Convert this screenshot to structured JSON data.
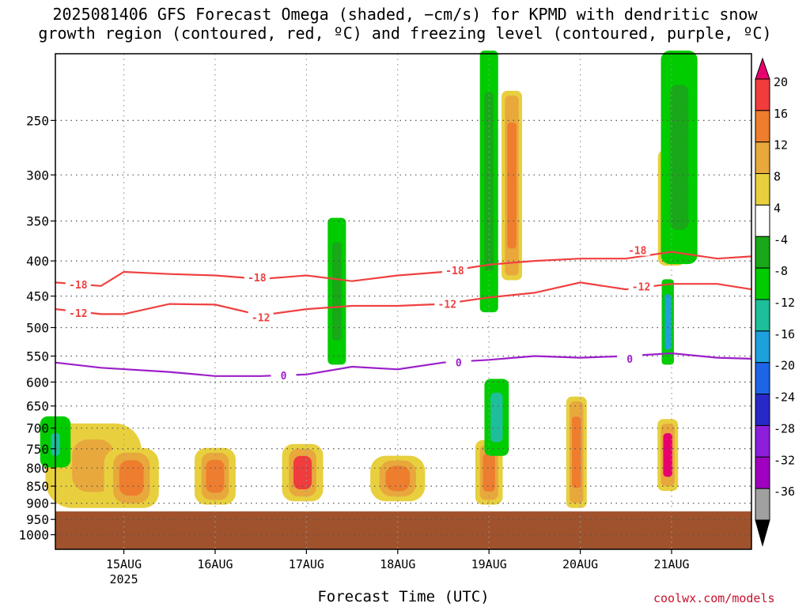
{
  "title_line1": "2025081406 GFS Forecast Omega (shaded, −cm/s) for KPMD with dendritic snow",
  "title_line2": "growth region (contoured, red, ºC) and freezing level (contoured, purple, ºC)",
  "xlabel": "Forecast Time (UTC)",
  "credit": "coolwx.com/models",
  "colors": {
    "background": "#ffffff",
    "ground": "#a0522d",
    "dgz_contour": "#f04040",
    "freezing_contour": "#9b1fc8",
    "grid": "#555555"
  },
  "chart_data": {
    "type": "heatmap",
    "title": "2025081406 GFS Forecast Omega (shaded, −cm/s) for KPMD with dendritic snow growth region (contoured, red, ºC) and freezing level (contoured, purple, ºC)",
    "xlabel": "Forecast Time (UTC)",
    "ylabel": "",
    "y_scale": "log-pressure (hPa), inverted",
    "x_range_hours_utc": [
      "2025-08-14 06",
      "2025-08-21 21"
    ],
    "x_ticks": [
      "15AUG",
      "16AUG",
      "17AUG",
      "18AUG",
      "19AUG",
      "20AUG",
      "21AUG"
    ],
    "x_tick_sublabel": "2025",
    "y_ticks": [
      250,
      300,
      350,
      400,
      450,
      500,
      550,
      600,
      650,
      700,
      750,
      800,
      850,
      900,
      950,
      1000
    ],
    "ylim": [
      1050,
      200
    ],
    "grid": true,
    "ground_below_hpa": 925,
    "colorbar": {
      "ticks": [
        20,
        16,
        12,
        8,
        4,
        -4,
        -8,
        -12,
        -16,
        -20,
        -24,
        -28,
        -32,
        -36
      ],
      "colors": [
        "#e8006e",
        "#f03c3c",
        "#ee7d2d",
        "#e8a83c",
        "#e8cf3e",
        "#ffffff",
        "#18a818",
        "#00cc00",
        "#1ebe9b",
        "#1ea0dc",
        "#1e64e6",
        "#2828c8",
        "#8c1edc",
        "#a000c0",
        "#a0a0a0",
        "#000000"
      ]
    },
    "contours": [
      {
        "name": "-18",
        "color": "#f04040",
        "points": [
          [
            "14AUG06",
            430
          ],
          [
            "14AUG18",
            435
          ],
          [
            "15AUG00",
            415
          ],
          [
            "15AUG12",
            418
          ],
          [
            "16AUG00",
            420
          ],
          [
            "16AUG12",
            425
          ],
          [
            "17AUG00",
            420
          ],
          [
            "17AUG12",
            428
          ],
          [
            "18AUG00",
            420
          ],
          [
            "18AUG12",
            415
          ],
          [
            "19AUG00",
            405
          ],
          [
            "19AUG12",
            400
          ],
          [
            "20AUG00",
            397
          ],
          [
            "20AUG12",
            397
          ],
          [
            "21AUG00",
            388
          ],
          [
            "21AUG12",
            397
          ],
          [
            "21AUG21",
            394
          ]
        ]
      },
      {
        "name": "-12",
        "color": "#f04040",
        "points": [
          [
            "14AUG06",
            470
          ],
          [
            "14AUG18",
            478
          ],
          [
            "15AUG00",
            478
          ],
          [
            "15AUG12",
            462
          ],
          [
            "16AUG00",
            463
          ],
          [
            "16AUG12",
            480
          ],
          [
            "17AUG00",
            470
          ],
          [
            "17AUG12",
            465
          ],
          [
            "18AUG00",
            465
          ],
          [
            "18AUG12",
            462
          ],
          [
            "19AUG00",
            452
          ],
          [
            "19AUG12",
            445
          ],
          [
            "20AUG00",
            430
          ],
          [
            "20AUG12",
            440
          ],
          [
            "21AUG00",
            432
          ],
          [
            "21AUG12",
            432
          ],
          [
            "21AUG21",
            440
          ]
        ]
      },
      {
        "name": "0",
        "color": "#9b1fc8",
        "points": [
          [
            "14AUG06",
            562
          ],
          [
            "14AUG18",
            572
          ],
          [
            "15AUG12",
            580
          ],
          [
            "16AUG00",
            588
          ],
          [
            "16AUG12",
            588
          ],
          [
            "17AUG00",
            585
          ],
          [
            "17AUG12",
            570
          ],
          [
            "18AUG00",
            575
          ],
          [
            "18AUG12",
            562
          ],
          [
            "19AUG00",
            557
          ],
          [
            "19AUG12",
            550
          ],
          [
            "20AUG00",
            553
          ],
          [
            "20AUG12",
            550
          ],
          [
            "21AUG00",
            545
          ],
          [
            "21AUG12",
            553
          ],
          [
            "21AUG21",
            555
          ]
        ]
      }
    ],
    "contour_labels": [
      {
        "text": "-18",
        "x": "14AUG12",
        "y": 433
      },
      {
        "text": "-12",
        "x": "14AUG12",
        "y": 476
      },
      {
        "text": "-18",
        "x": "16AUG11",
        "y": 423
      },
      {
        "text": "-12",
        "x": "16AUG12",
        "y": 483
      },
      {
        "text": "0",
        "x": "16AUG18",
        "y": 587
      },
      {
        "text": "-18",
        "x": "18AUG15",
        "y": 413
      },
      {
        "text": "-12",
        "x": "18AUG13",
        "y": 462
      },
      {
        "text": "0",
        "x": "18AUG16",
        "y": 562
      },
      {
        "text": "-18",
        "x": "20AUG15",
        "y": 386
      },
      {
        "text": "-12",
        "x": "20AUG16",
        "y": 436
      },
      {
        "text": "0",
        "x": "20AUG13",
        "y": 555
      }
    ],
    "omega_features": [
      {
        "level": 8,
        "time": "14AUG16",
        "p_top": 700,
        "p_bot": 900,
        "width_h": 14
      },
      {
        "level": 12,
        "time": "15AUG02",
        "p_top": 760,
        "p_bot": 900,
        "width_h": 8
      },
      {
        "level": 12,
        "time": "16AUG00",
        "p_top": 760,
        "p_bot": 890,
        "width_h": 6
      },
      {
        "level": 16,
        "time": "16AUG23",
        "p_top": 750,
        "p_bot": 880,
        "width_h": 6
      },
      {
        "level": 12,
        "time": "18AUG00",
        "p_top": 780,
        "p_bot": 880,
        "width_h": 8
      },
      {
        "level": 12,
        "time": "19AUG00",
        "p_top": 740,
        "p_bot": 890,
        "width_h": 4
      },
      {
        "level": 12,
        "time": "19AUG06",
        "p_top": 230,
        "p_bot": 420,
        "width_h": 3
      },
      {
        "level": 12,
        "time": "19AUG23",
        "p_top": 640,
        "p_bot": 900,
        "width_h": 3
      },
      {
        "level": 20,
        "time": "20AUG23",
        "p_top": 690,
        "p_bot": 850,
        "width_h": 3
      },
      {
        "level": 12,
        "time": "21AUG00",
        "p_top": 280,
        "p_bot": 400,
        "width_h": 4
      },
      {
        "level": -8,
        "time": "14AUG06",
        "p_top": 680,
        "p_bot": 790,
        "width_h": 5
      },
      {
        "level": -12,
        "time": "14AUG06",
        "p_top": 700,
        "p_bot": 780,
        "width_h": 3
      },
      {
        "level": -8,
        "time": "17AUG08",
        "p_top": 350,
        "p_bot": 560,
        "width_h": 3
      },
      {
        "level": -8,
        "time": "19AUG00",
        "p_top": 200,
        "p_bot": 470,
        "width_h": 3
      },
      {
        "level": -12,
        "time": "19AUG02",
        "p_top": 600,
        "p_bot": 760,
        "width_h": 4
      },
      {
        "level": -8,
        "time": "21AUG02",
        "p_top": 200,
        "p_bot": 400,
        "width_h": 6
      },
      {
        "level": -16,
        "time": "20AUG23",
        "p_top": 430,
        "p_bot": 560,
        "width_h": 2
      }
    ]
  }
}
